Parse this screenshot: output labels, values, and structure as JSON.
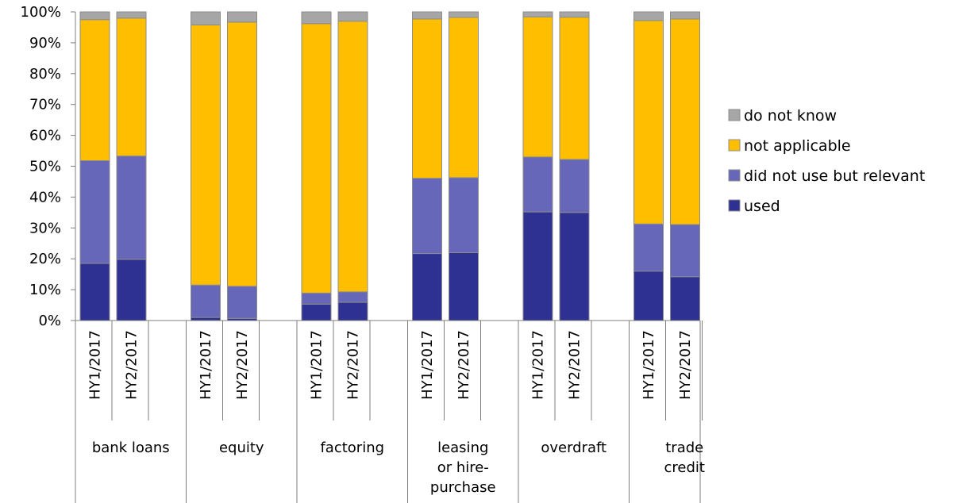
{
  "chart_data": {
    "type": "bar",
    "stacked": true,
    "ylim": [
      0,
      100
    ],
    "y_ticks": [
      "0%",
      "10%",
      "20%",
      "30%",
      "40%",
      "50%",
      "60%",
      "70%",
      "80%",
      "90%",
      "100%"
    ],
    "grid": false,
    "legend_position": "right",
    "groups": [
      {
        "label": [
          "bank loans"
        ],
        "periods": [
          "HY1/2017",
          "HY2/2017"
        ]
      },
      {
        "label": [
          "equity"
        ],
        "periods": [
          "HY1/2017",
          "HY2/2017"
        ]
      },
      {
        "label": [
          "factoring"
        ],
        "periods": [
          "HY1/2017",
          "HY2/2017"
        ]
      },
      {
        "label": [
          "leasing",
          "or hire-",
          "purchase"
        ],
        "periods": [
          "HY1/2017",
          "HY2/2017"
        ]
      },
      {
        "label": [
          "overdraft"
        ],
        "periods": [
          "HY1/2017",
          "HY2/2017"
        ]
      },
      {
        "label": [
          "trade",
          "credit"
        ],
        "periods": [
          "HY1/2017",
          "HY2/2017"
        ]
      }
    ],
    "series": [
      {
        "name": "used",
        "color": "#2E3192",
        "values": [
          18.5,
          19.8,
          1.0,
          0.7,
          5.3,
          5.9,
          21.7,
          22.0,
          35.2,
          35.0,
          16.0,
          14.2
        ]
      },
      {
        "name": "did not use but relevant",
        "color": "#6767B9",
        "values": [
          33.3,
          33.5,
          10.5,
          10.4,
          3.6,
          3.4,
          24.4,
          24.3,
          17.8,
          17.2,
          15.3,
          16.9
        ]
      },
      {
        "name": "not applicable",
        "color": "#FFBF00",
        "values": [
          45.7,
          44.7,
          84.3,
          85.6,
          87.3,
          87.7,
          51.6,
          51.9,
          45.4,
          46.1,
          65.9,
          66.6
        ]
      },
      {
        "name": "do not know",
        "color": "#A6A6A6",
        "values": [
          2.5,
          2.0,
          4.2,
          3.3,
          3.8,
          3.0,
          2.3,
          1.8,
          1.6,
          1.7,
          2.8,
          2.3
        ]
      }
    ],
    "legend_order": [
      "do not know",
      "not applicable",
      "did not use but relevant",
      "used"
    ]
  }
}
